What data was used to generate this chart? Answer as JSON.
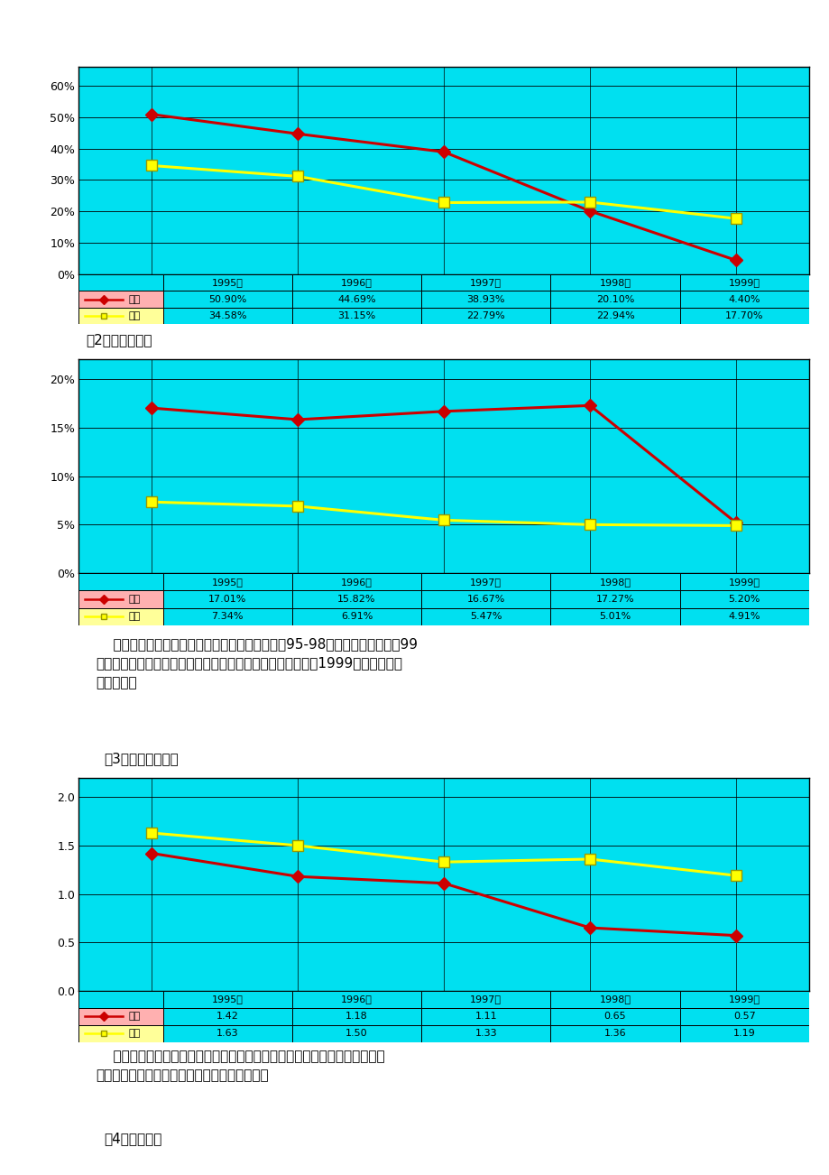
{
  "page_bg": "#ffffff",
  "chart_bg": "#00e0f0",
  "years": [
    "1995年",
    "1996年",
    "1997年",
    "1998年",
    "1999年"
  ],
  "chart1": {
    "changhong_values": [
      50.9,
      44.69,
      38.93,
      20.1,
      4.4
    ],
    "kangjia_values": [
      34.58,
      31.15,
      22.79,
      22.94,
      17.7
    ],
    "changhong_labels": [
      "50.90%",
      "44.69%",
      "38.93%",
      "20.10%",
      "4.40%"
    ],
    "kangjia_labels": [
      "34.58%",
      "31.15%",
      "22.79%",
      "22.94%",
      "17.70%"
    ],
    "yticks": [
      0,
      10,
      20,
      30,
      40,
      50,
      60
    ],
    "ytick_labels": [
      "0%",
      "10%",
      "20%",
      "30%",
      "40%",
      "50%",
      "60%"
    ],
    "ylim": [
      0,
      66
    ]
  },
  "chart2": {
    "changhong_values": [
      17.01,
      15.82,
      16.67,
      17.27,
      5.2
    ],
    "kangjia_values": [
      7.34,
      6.91,
      5.47,
      5.01,
      4.91
    ],
    "changhong_labels": [
      "17.01%",
      "15.82%",
      "16.67%",
      "17.27%",
      "5.20%"
    ],
    "kangjia_labels": [
      "7.34%",
      "6.91%",
      "5.47%",
      "5.01%",
      "4.91%"
    ],
    "yticks": [
      0,
      5,
      10,
      15,
      20
    ],
    "ytick_labels": [
      "0%",
      "5%",
      "10%",
      "15%",
      "20%"
    ],
    "ylim": [
      0,
      22
    ]
  },
  "chart3": {
    "changhong_values": [
      1.42,
      1.18,
      1.11,
      0.65,
      0.57
    ],
    "kangjia_values": [
      1.63,
      1.5,
      1.33,
      1.36,
      1.19
    ],
    "changhong_labels": [
      "1.42",
      "1.18",
      "1.11",
      "0.65",
      "0.57"
    ],
    "kangjia_labels": [
      "1.63",
      "1.50",
      "1.33",
      "1.36",
      "1.19"
    ],
    "yticks": [
      0.0,
      0.5,
      1.0,
      1.5,
      2.0
    ],
    "ytick_labels": [
      "0.0",
      "0.5",
      "1.0",
      "1.5",
      "2.0"
    ],
    "ylim": [
      0.0,
      2.2
    ]
  },
  "changhong_color": "#cc0000",
  "kangjia_color": "#ffff00",
  "changhong_legend": "长虹",
  "kangjia_legend": "康佳",
  "text1": "（2）销售净利率",
  "text2_line1": "    销售净利率反映企业销售收入的获利能力。长虹95-98年基本保持不变，佤99",
  "text2_line2": "年大幅跳水，康佳呈现稳中有降状态，但幅度很小，两家公司1999年销售净利率",
  "text2_line3": "基本持平。",
  "text3": "（3）总资产周转率",
  "text4_line1": "    总资产周转率反映总资产的利用效率。两家公司总资产周转率均逐年递减，",
  "text4_line2": "长虹一直低于康佳，且其递减幅度也大于康佳。",
  "text5": "（4）权益乘数",
  "font_size_label": 11,
  "font_size_tick": 9,
  "font_size_table": 8,
  "font_size_text": 11
}
